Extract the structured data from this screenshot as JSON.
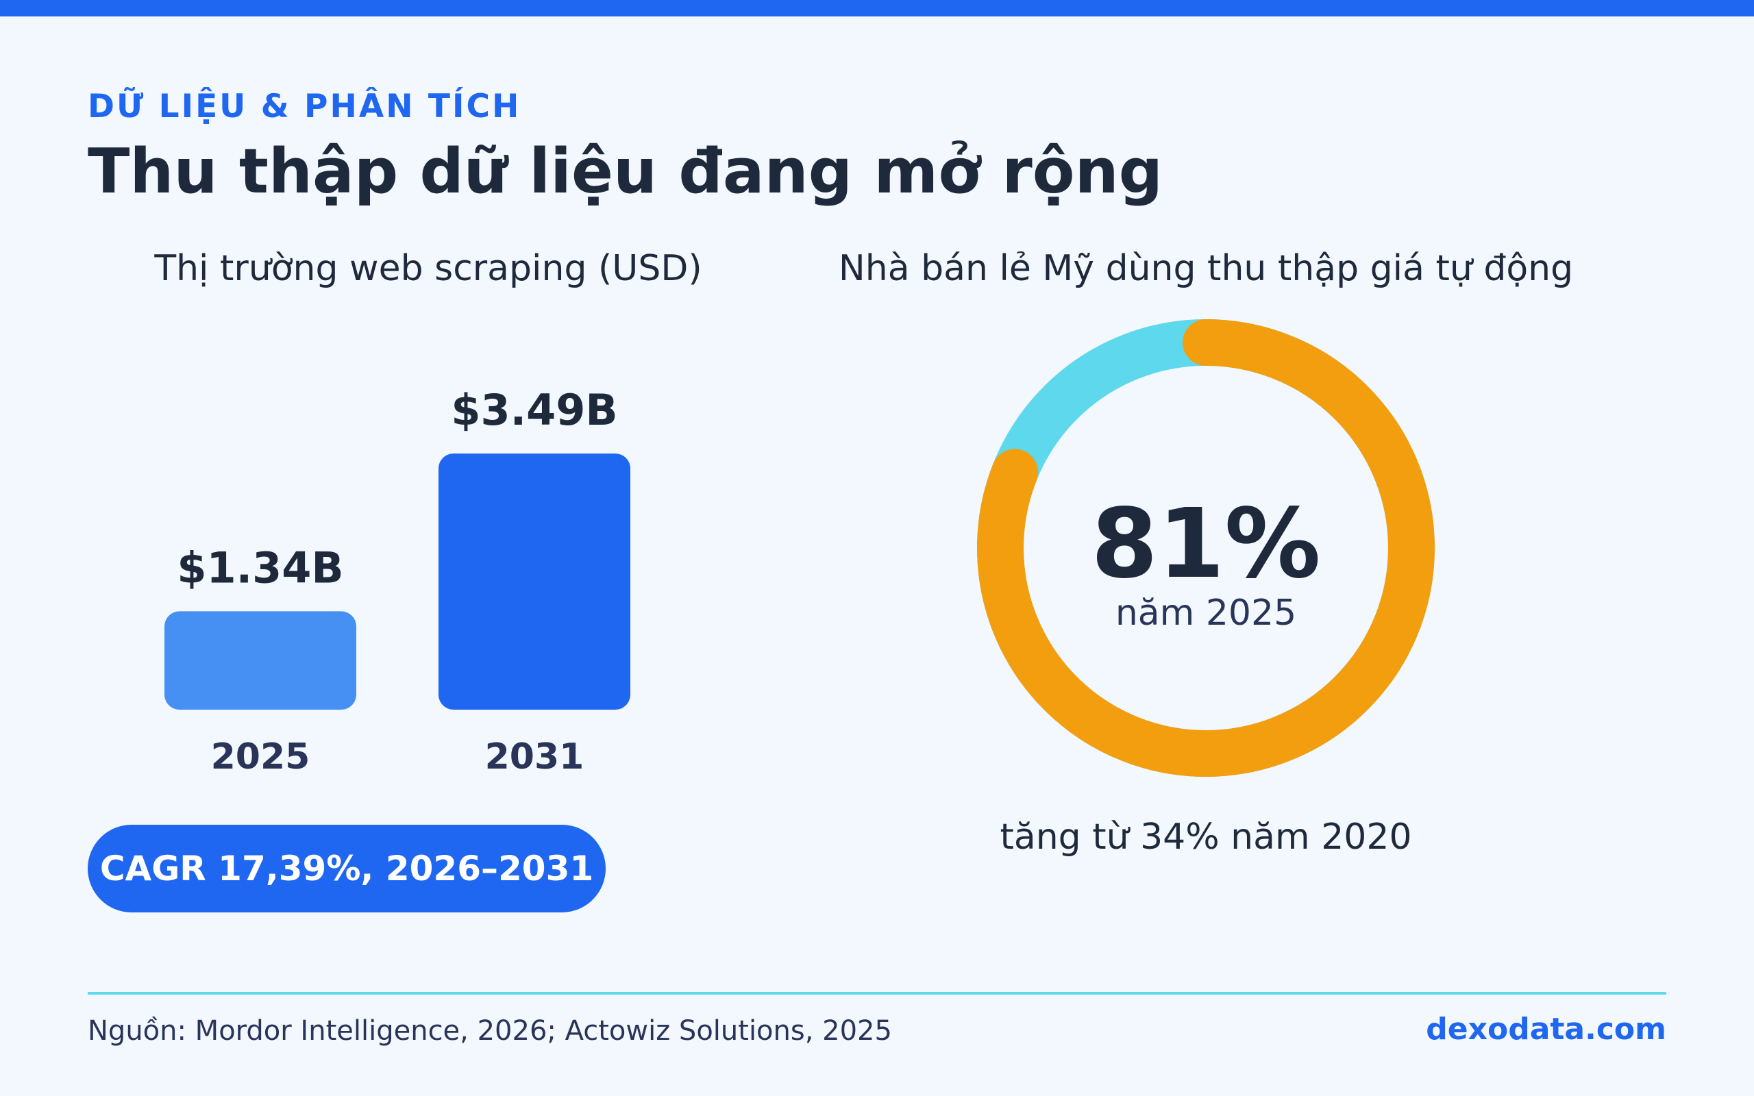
{
  "header": {
    "eyebrow": "DỮ LIỆU & PHÂN TÍCH",
    "title": "Thu thập dữ liệu đang mở rộng"
  },
  "colors": {
    "accent": "#1f66f0",
    "bar_2025": "#4690f3",
    "bar_2031": "#1f66f0",
    "donut_main": "#f39e0e",
    "donut_rest": "#5ed8ec",
    "text": "#1e293b"
  },
  "chart_data": [
    {
      "type": "bar",
      "title": "Thị trường web scraping (USD)",
      "categories": [
        "2025",
        "2031"
      ],
      "values": [
        1.34,
        3.49
      ],
      "value_labels": [
        "$1.34B",
        "$3.49B"
      ],
      "unit": "B USD",
      "xlabel": "",
      "ylabel": "",
      "grid": false
    },
    {
      "type": "pie",
      "variant": "donut",
      "title": "Nhà bán lẻ Mỹ dùng thu thập giá tự động",
      "values": [
        81,
        19
      ],
      "center_value": "81%",
      "center_label": "năm 2025",
      "note": "tăng từ 34% năm 2020"
    }
  ],
  "callout": {
    "cagr": "CAGR 17,39%, 2026–2031"
  },
  "footer": {
    "source": "Nguồn: Mordor Intelligence, 2026; Actowiz Solutions, 2025",
    "site": "dexodata.com"
  }
}
